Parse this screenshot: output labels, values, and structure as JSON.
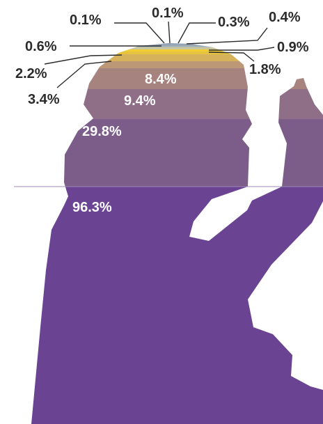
{
  "chart_data": {
    "type": "area",
    "title": "",
    "xlabel": "",
    "ylabel": "",
    "grid": false,
    "legend": "none",
    "shape": "silhouette of a person with a raised hand",
    "layers": [
      {
        "label": "96.3%",
        "value": 96.3,
        "color": "#6a4393"
      },
      {
        "label": "29.8%",
        "value": 29.8,
        "color": "#7c5d8a"
      },
      {
        "label": "9.4%",
        "value": 9.4,
        "color": "#8f6e88"
      },
      {
        "label": "8.4%",
        "value": 8.4,
        "color": "#a78380"
      },
      {
        "label": "3.4%",
        "value": 3.4,
        "color": "#bd9876"
      },
      {
        "label": "2.2%",
        "value": 2.2,
        "color": "#d6b25a"
      },
      {
        "label": "1.8%",
        "value": 1.8,
        "color": "#e6c33f"
      },
      {
        "label": "0.9%",
        "value": 0.9,
        "color": "#efcf34"
      },
      {
        "label": "0.6%",
        "value": 0.6,
        "color": "#c9c7a0"
      },
      {
        "label": "0.4%",
        "value": 0.4,
        "color": "#a9b4b8"
      },
      {
        "label": "0.3%",
        "value": 0.3,
        "color": "#98a9b6"
      },
      {
        "label": "0.1%",
        "value": 0.1,
        "color": "#8fa0b4"
      },
      {
        "label": "0.1%",
        "value": 0.1,
        "color": "#8a9cb0"
      }
    ]
  }
}
